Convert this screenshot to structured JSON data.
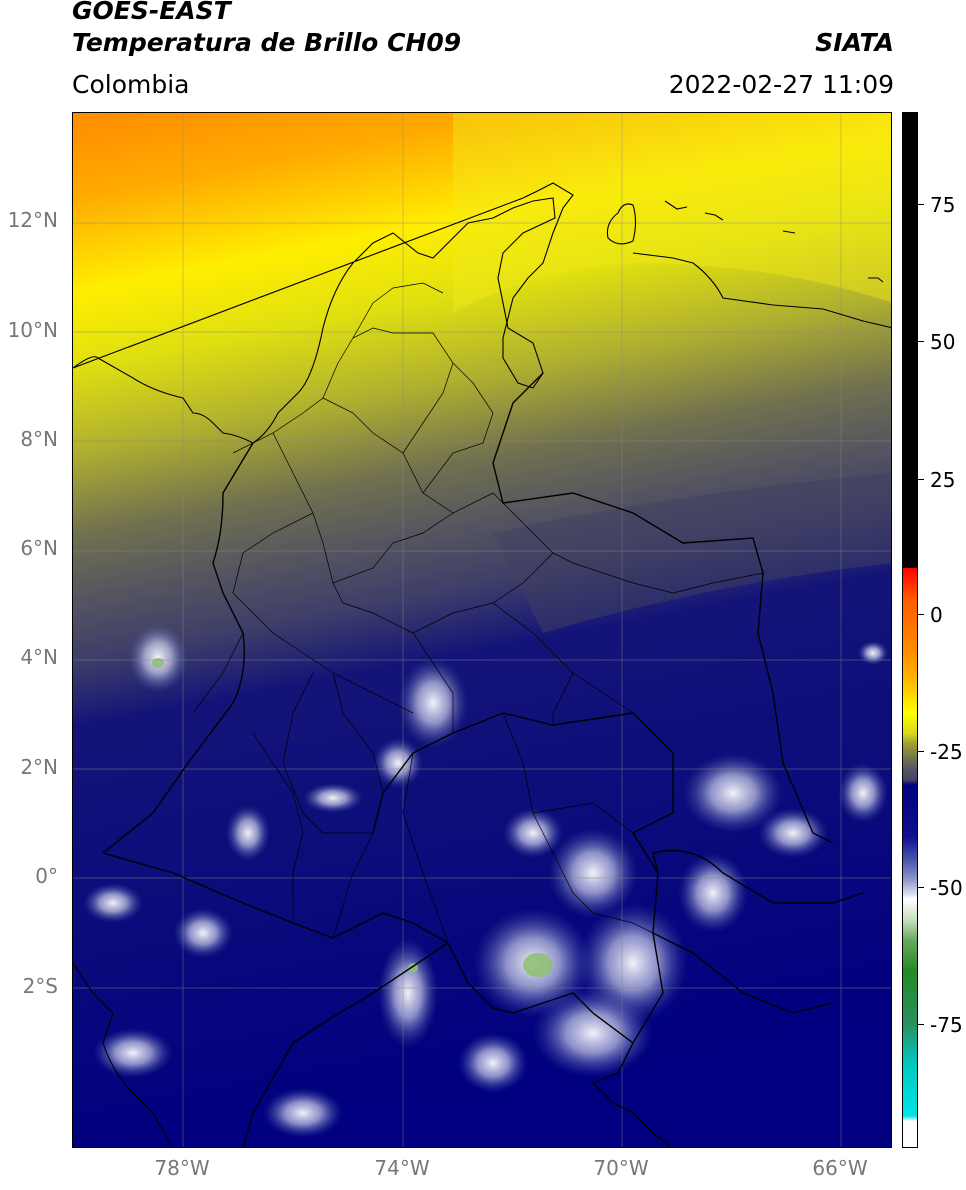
{
  "header": {
    "satellite": "GOES-EAST",
    "product": "Temperatura de Brillo CH09",
    "organization": "SIATA",
    "region": "Colombia",
    "datetime": "2022-02-27 11:09"
  },
  "map": {
    "lat_labels": [
      "12°N",
      "10°N",
      "8°N",
      "6°N",
      "4°N",
      "2°N",
      "0°",
      "2°S"
    ],
    "lon_labels": [
      "78°W",
      "74°W",
      "70°W",
      "66°W"
    ],
    "lat_range": [
      -5,
      14
    ],
    "lon_range": [
      -80,
      -65
    ],
    "gridlines": true
  },
  "colorbar": {
    "labels": [
      "75",
      "50",
      "25",
      "0",
      "-25",
      "-50",
      "-75"
    ],
    "range": [
      -95,
      90
    ],
    "colors": {
      "black": "#000000",
      "red": "#ff0000",
      "orange": "#ff8c00",
      "yellow": "#ffff00",
      "olive": "#a0a030",
      "gray": "#555566",
      "navy": "#000080",
      "white": "#ffffff",
      "green": "#228b22",
      "cyan": "#00e5e5"
    }
  }
}
